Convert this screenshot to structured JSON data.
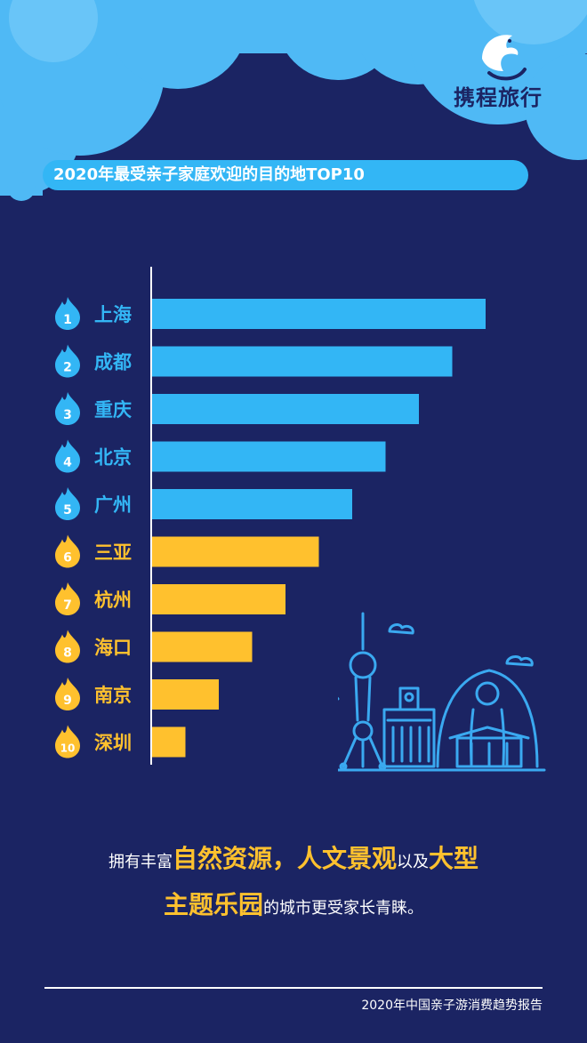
{
  "brand": {
    "name": "携程旅行"
  },
  "colors": {
    "background": "#1b2463",
    "blue": "#33b6f5",
    "cloud": "#4fb9f5",
    "yellow": "#ffc12e",
    "white": "#ffffff"
  },
  "chart_data": {
    "type": "bar",
    "orientation": "horizontal",
    "title": "2020年最受亲子家庭欢迎的目的地TOP10",
    "categories": [
      "上海",
      "成都",
      "重庆",
      "北京",
      "广州",
      "三亚",
      "杭州",
      "海口",
      "南京",
      "深圳"
    ],
    "ranks": [
      "1",
      "2",
      "3",
      "4",
      "5",
      "6",
      "7",
      "8",
      "9",
      "10"
    ],
    "values": [
      10,
      9,
      8,
      7,
      6,
      5,
      4,
      3,
      2,
      1
    ],
    "bar_colors": [
      "#33b6f5",
      "#33b6f5",
      "#33b6f5",
      "#33b6f5",
      "#33b6f5",
      "#ffc12e",
      "#ffc12e",
      "#ffc12e",
      "#ffc12e",
      "#ffc12e"
    ],
    "xlabel": "",
    "ylabel": "",
    "xlim": [
      0,
      10
    ],
    "grid": false,
    "legend": "none"
  },
  "description": {
    "line1": [
      {
        "text": "拥有丰富",
        "style": "small"
      },
      {
        "text": "自然资源，人文景观",
        "style": "big"
      },
      {
        "text": "以及",
        "style": "small"
      },
      {
        "text": "大型",
        "style": "big"
      }
    ],
    "line2": [
      {
        "text": "主题乐园",
        "style": "big"
      },
      {
        "text": "的城市更受家长青睐。",
        "style": "small"
      }
    ]
  },
  "footer": {
    "source": "2020年中国亲子游消费趋势报告"
  }
}
